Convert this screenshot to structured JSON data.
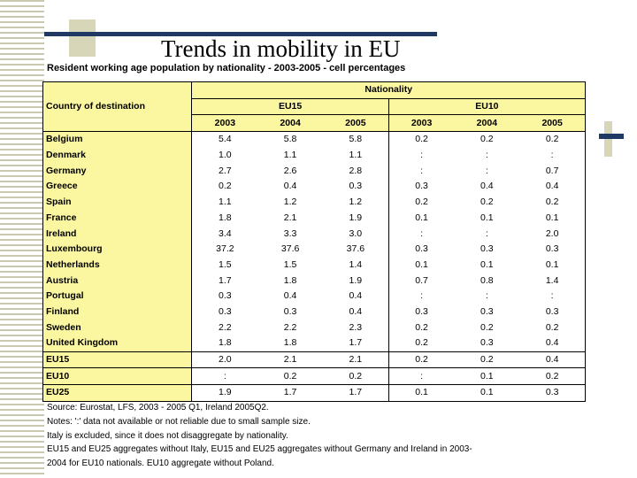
{
  "slide": {
    "title": "Trends in mobility in EU"
  },
  "table": {
    "subtitle": "Resident working age population by nationality - 2003-2005 - cell percentages",
    "nationality_header": "Nationality",
    "country_header": "Country of destination",
    "groups": [
      "EU15",
      "EU10"
    ],
    "years": [
      "2003",
      "2004",
      "2005",
      "2003",
      "2004",
      "2005"
    ],
    "countries": [
      {
        "name": "Belgium",
        "values": [
          "5.4",
          "5.8",
          "5.8",
          "0.2",
          "0.2",
          "0.2"
        ]
      },
      {
        "name": "Denmark",
        "values": [
          "1.0",
          "1.1",
          "1.1",
          ":",
          ":",
          ":"
        ]
      },
      {
        "name": "Germany",
        "values": [
          "2.7",
          "2.6",
          "2.8",
          ":",
          ":",
          "0.7"
        ]
      },
      {
        "name": "Greece",
        "values": [
          "0.2",
          "0.4",
          "0.3",
          "0.3",
          "0.4",
          "0.4"
        ]
      },
      {
        "name": "Spain",
        "values": [
          "1.1",
          "1.2",
          "1.2",
          "0.2",
          "0.2",
          "0.2"
        ]
      },
      {
        "name": "France",
        "values": [
          "1.8",
          "2.1",
          "1.9",
          "0.1",
          "0.1",
          "0.1"
        ]
      },
      {
        "name": "Ireland",
        "values": [
          "3.4",
          "3.3",
          "3.0",
          ":",
          ":",
          "2.0"
        ]
      },
      {
        "name": "Luxembourg",
        "values": [
          "37.2",
          "37.6",
          "37.6",
          "0.3",
          "0.3",
          "0.3"
        ]
      },
      {
        "name": "Netherlands",
        "values": [
          "1.5",
          "1.5",
          "1.4",
          "0.1",
          "0.1",
          "0.1"
        ]
      },
      {
        "name": "Austria",
        "values": [
          "1.7",
          "1.8",
          "1.9",
          "0.7",
          "0.8",
          "1.4"
        ]
      },
      {
        "name": "Portugal",
        "values": [
          "0.3",
          "0.4",
          "0.4",
          ":",
          ":",
          ":"
        ]
      },
      {
        "name": "Finland",
        "values": [
          "0.3",
          "0.3",
          "0.4",
          "0.3",
          "0.3",
          "0.3"
        ]
      },
      {
        "name": "Sweden",
        "values": [
          "2.2",
          "2.2",
          "2.3",
          "0.2",
          "0.2",
          "0.2"
        ]
      },
      {
        "name": "United Kingdom",
        "values": [
          "1.8",
          "1.8",
          "1.7",
          "0.2",
          "0.3",
          "0.4"
        ]
      }
    ],
    "aggregates": [
      {
        "name": "EU15",
        "values": [
          "2.0",
          "2.1",
          "2.1",
          "0.2",
          "0.2",
          "0.4"
        ]
      },
      {
        "name": "EU10",
        "values": [
          ":",
          "0.2",
          "0.2",
          ":",
          "0.1",
          "0.2"
        ]
      },
      {
        "name": "EU25",
        "values": [
          "1.9",
          "1.7",
          "1.7",
          "0.1",
          "0.1",
          "0.3"
        ]
      }
    ]
  },
  "notes": [
    "Source: Eurostat, LFS, 2003 - 2005 Q1, Ireland 2005Q2.",
    "Notes: ':' data not available or not reliable due to small sample size.",
    "Italy is excluded, since it does not disaggregate by nationality.",
    "EU15 and EU25 aggregates without Italy, EU15 and EU25 aggregates without Germany and Ireland in 2003-",
    "2004 for EU10 nationals. EU10 aggregate without Poland."
  ]
}
